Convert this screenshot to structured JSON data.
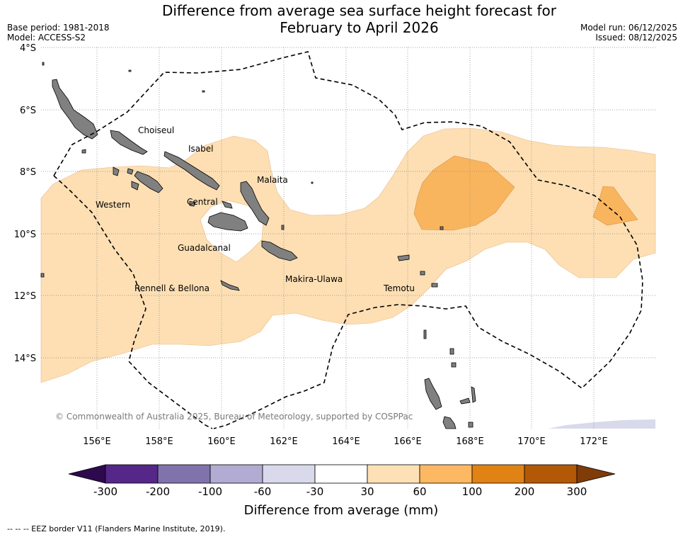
{
  "title_line1": "Difference from average sea surface height forecast for",
  "title_line2": "February to April 2026",
  "base_period": "Base period: 1981-2018",
  "model": "Model: ACCESS-S2",
  "model_run": "Model run: 06/12/2025",
  "issued": "Issued: 08/12/2025",
  "lat_labels": [
    "4°S",
    "6°S",
    "8°S",
    "10°S",
    "12°S",
    "14°S"
  ],
  "lon_labels": [
    "156°E",
    "158°E",
    "160°E",
    "162°E",
    "164°E",
    "166°E",
    "168°E",
    "170°E",
    "172°E"
  ],
  "places": [
    "Choiseul",
    "Isabel",
    "Malaita",
    "Western",
    "Central",
    "Guadalcanal",
    "Makira-Ulawa",
    "Rennell & Bellona",
    "Temotu"
  ],
  "copyright": "© Commonwealth of Australia 2025, Bureau of Meteorology, supported by COSPPac",
  "colorbar": {
    "ticks": [
      "-300",
      "-200",
      "-100",
      "-60",
      "-30",
      "30",
      "60",
      "100",
      "200",
      "300"
    ],
    "colors": [
      "#2d0a4e",
      "#542788",
      "#8073ac",
      "#b2abd2",
      "#d8daeb",
      "#ffffff",
      "#fee0b6",
      "#fdb863",
      "#e08214",
      "#b35806",
      "#7f3b08"
    ],
    "label": "Difference from average (mm)"
  },
  "legend_note": "-- -- -- EEZ border V11 (Flanders Marine Institute, 2019).",
  "colors": {
    "land": "#808080",
    "band_30_60": "#fddfb3",
    "band_60_100": "#f9b55e"
  }
}
